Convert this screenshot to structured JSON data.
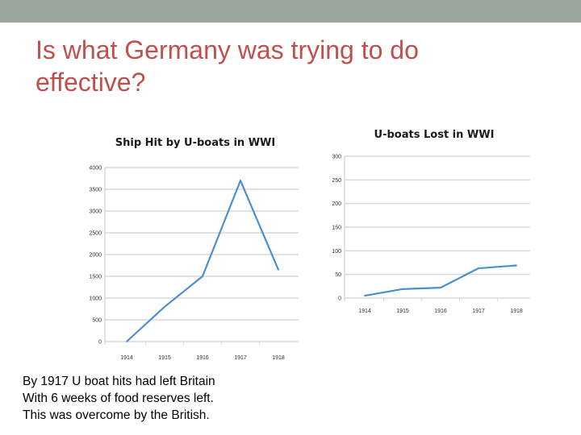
{
  "slide": {
    "title": "Is what Germany was trying to do effective?",
    "caption_lines": [
      "By 1917 U boat hits had left Britain",
      "With 6 weeks of food reserves left.",
      "This was overcome by the British."
    ]
  },
  "colors": {
    "accent": "#c0504d",
    "line": "#4a8fd0",
    "grid": "#d9d9d9",
    "topbar": "#9aa79d"
  },
  "chart_data": [
    {
      "type": "line",
      "title": "Ship Hit by U-boats in WWI",
      "categories": [
        "1914",
        "1915",
        "1916",
        "1917",
        "1918"
      ],
      "values": [
        0,
        800,
        1500,
        3700,
        1650
      ],
      "ylim": [
        0,
        4000
      ],
      "yticks": [
        0,
        500,
        1000,
        1500,
        2000,
        2500,
        3000,
        3500,
        4000
      ],
      "ytick_labels": [
        "0",
        "500",
        "1000",
        "1500",
        "2000",
        "2500",
        "3000",
        "3500",
        "4000"
      ],
      "grid": true
    },
    {
      "type": "line",
      "title": "U-boats Lost in WWI",
      "categories": [
        "1914",
        "1915",
        "1916",
        "1917",
        "1918"
      ],
      "values": [
        5,
        19,
        22,
        63,
        69
      ],
      "ylim": [
        0,
        300
      ],
      "yticks": [
        0,
        50,
        100,
        150,
        200,
        250,
        300
      ],
      "ytick_labels": [
        "0",
        "50",
        "100",
        "150",
        "200",
        "250",
        "300"
      ],
      "grid": true
    }
  ]
}
